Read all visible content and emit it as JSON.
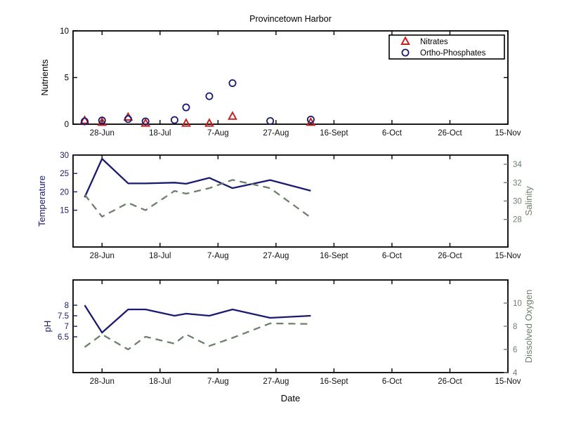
{
  "figure": {
    "title": "Provincetown Harbor",
    "x_axis_label": "Date",
    "background": "#ffffff"
  },
  "colors": {
    "primary_line": "#1a1a70",
    "secondary_line": "#6e7f6e",
    "nitrates_marker": "#c42323",
    "phosphates_marker": "#1a1a70",
    "axis_box": "#000000",
    "tick_text": "#111111"
  },
  "x_axis": {
    "range_days": [
      0,
      150
    ],
    "tick_days": [
      10,
      30,
      50,
      70,
      90,
      110,
      130,
      150
    ],
    "tick_labels": [
      "28-Jun",
      "18-Jul",
      "7-Aug",
      "27-Aug",
      "16-Sept",
      "6-Oct",
      "26-Oct",
      "15-Nov"
    ]
  },
  "samples": {
    "days": [
      4,
      10,
      19,
      25,
      35,
      39,
      47,
      55,
      68,
      82
    ],
    "dates": [
      "22-Jun",
      "28-Jun",
      "7-Jul",
      "13-Jul",
      "23-Jul",
      "27-Jul",
      "4-Aug",
      "12-Aug",
      "25-Aug",
      "8-Sept"
    ]
  },
  "chart_data": [
    {
      "type": "scatter",
      "title": "Provincetown Harbor",
      "ylabel": "Nutrients",
      "ylim": [
        0,
        10
      ],
      "yticks": [
        0,
        5,
        10
      ],
      "x_dates": [
        "22-Jun",
        "28-Jun",
        "7-Jul",
        "13-Jul",
        "23-Jul",
        "27-Jul",
        "4-Aug",
        "12-Aug",
        "25-Aug",
        "8-Sept"
      ],
      "legend_position": "top-right",
      "series": [
        {
          "name": "Nitrates",
          "marker": "triangle",
          "color": "#c42323",
          "values": [
            0.4,
            0.2,
            0.75,
            0.1,
            null,
            0.1,
            0.1,
            0.85,
            null,
            0.2
          ]
        },
        {
          "name": "Ortho-Phosphates",
          "marker": "circle",
          "color": "#1a1a70",
          "values": [
            0.3,
            0.4,
            0.55,
            0.3,
            0.45,
            1.8,
            3.0,
            4.4,
            0.35,
            0.5
          ]
        }
      ]
    },
    {
      "type": "line",
      "x_dates": [
        "22-Jun",
        "28-Jun",
        "7-Jul",
        "13-Jul",
        "23-Jul",
        "27-Jul",
        "4-Aug",
        "12-Aug",
        "25-Aug",
        "8-Sept"
      ],
      "left_axis": {
        "label": "Temperature",
        "color": "#1a1a70",
        "line_style": "solid",
        "ylim": [
          5,
          30
        ],
        "yticks": [
          15,
          20,
          25,
          30
        ],
        "values": [
          18.5,
          29.0,
          22.3,
          22.3,
          22.5,
          22.2,
          23.8,
          21.0,
          23.2,
          20.3
        ]
      },
      "right_axis": {
        "label": "Salinity",
        "color": "#6e7f6e",
        "line_style": "dashed",
        "ylim": [
          25,
          35
        ],
        "yticks": [
          28,
          30,
          32,
          34
        ],
        "values": [
          30.7,
          28.3,
          29.8,
          29.0,
          31.1,
          30.8,
          31.4,
          32.3,
          31.4,
          28.2
        ]
      }
    },
    {
      "type": "line",
      "x_dates": [
        "22-Jun",
        "28-Jun",
        "7-Jul",
        "13-Jul",
        "23-Jul",
        "27-Jul",
        "4-Aug",
        "12-Aug",
        "25-Aug",
        "8-Sept"
      ],
      "xlabel": "Date",
      "left_axis": {
        "label": "pH",
        "color": "#1a1a70",
        "line_style": "solid",
        "ylim": [
          4.8,
          9.2
        ],
        "yticks": [
          6.5,
          7,
          7.5,
          8
        ],
        "values": [
          8.0,
          6.7,
          7.8,
          7.8,
          7.5,
          7.6,
          7.5,
          7.8,
          7.4,
          7.5
        ]
      },
      "right_axis": {
        "label": "Dissolved Oxygen",
        "color": "#6e7f6e",
        "line_style": "dashed",
        "ylim": [
          4,
          12
        ],
        "yticks": [
          4,
          6,
          8,
          10
        ],
        "values": [
          6.2,
          7.3,
          6.0,
          7.1,
          6.5,
          7.3,
          6.3,
          7.0,
          8.25,
          8.2
        ]
      }
    }
  ]
}
